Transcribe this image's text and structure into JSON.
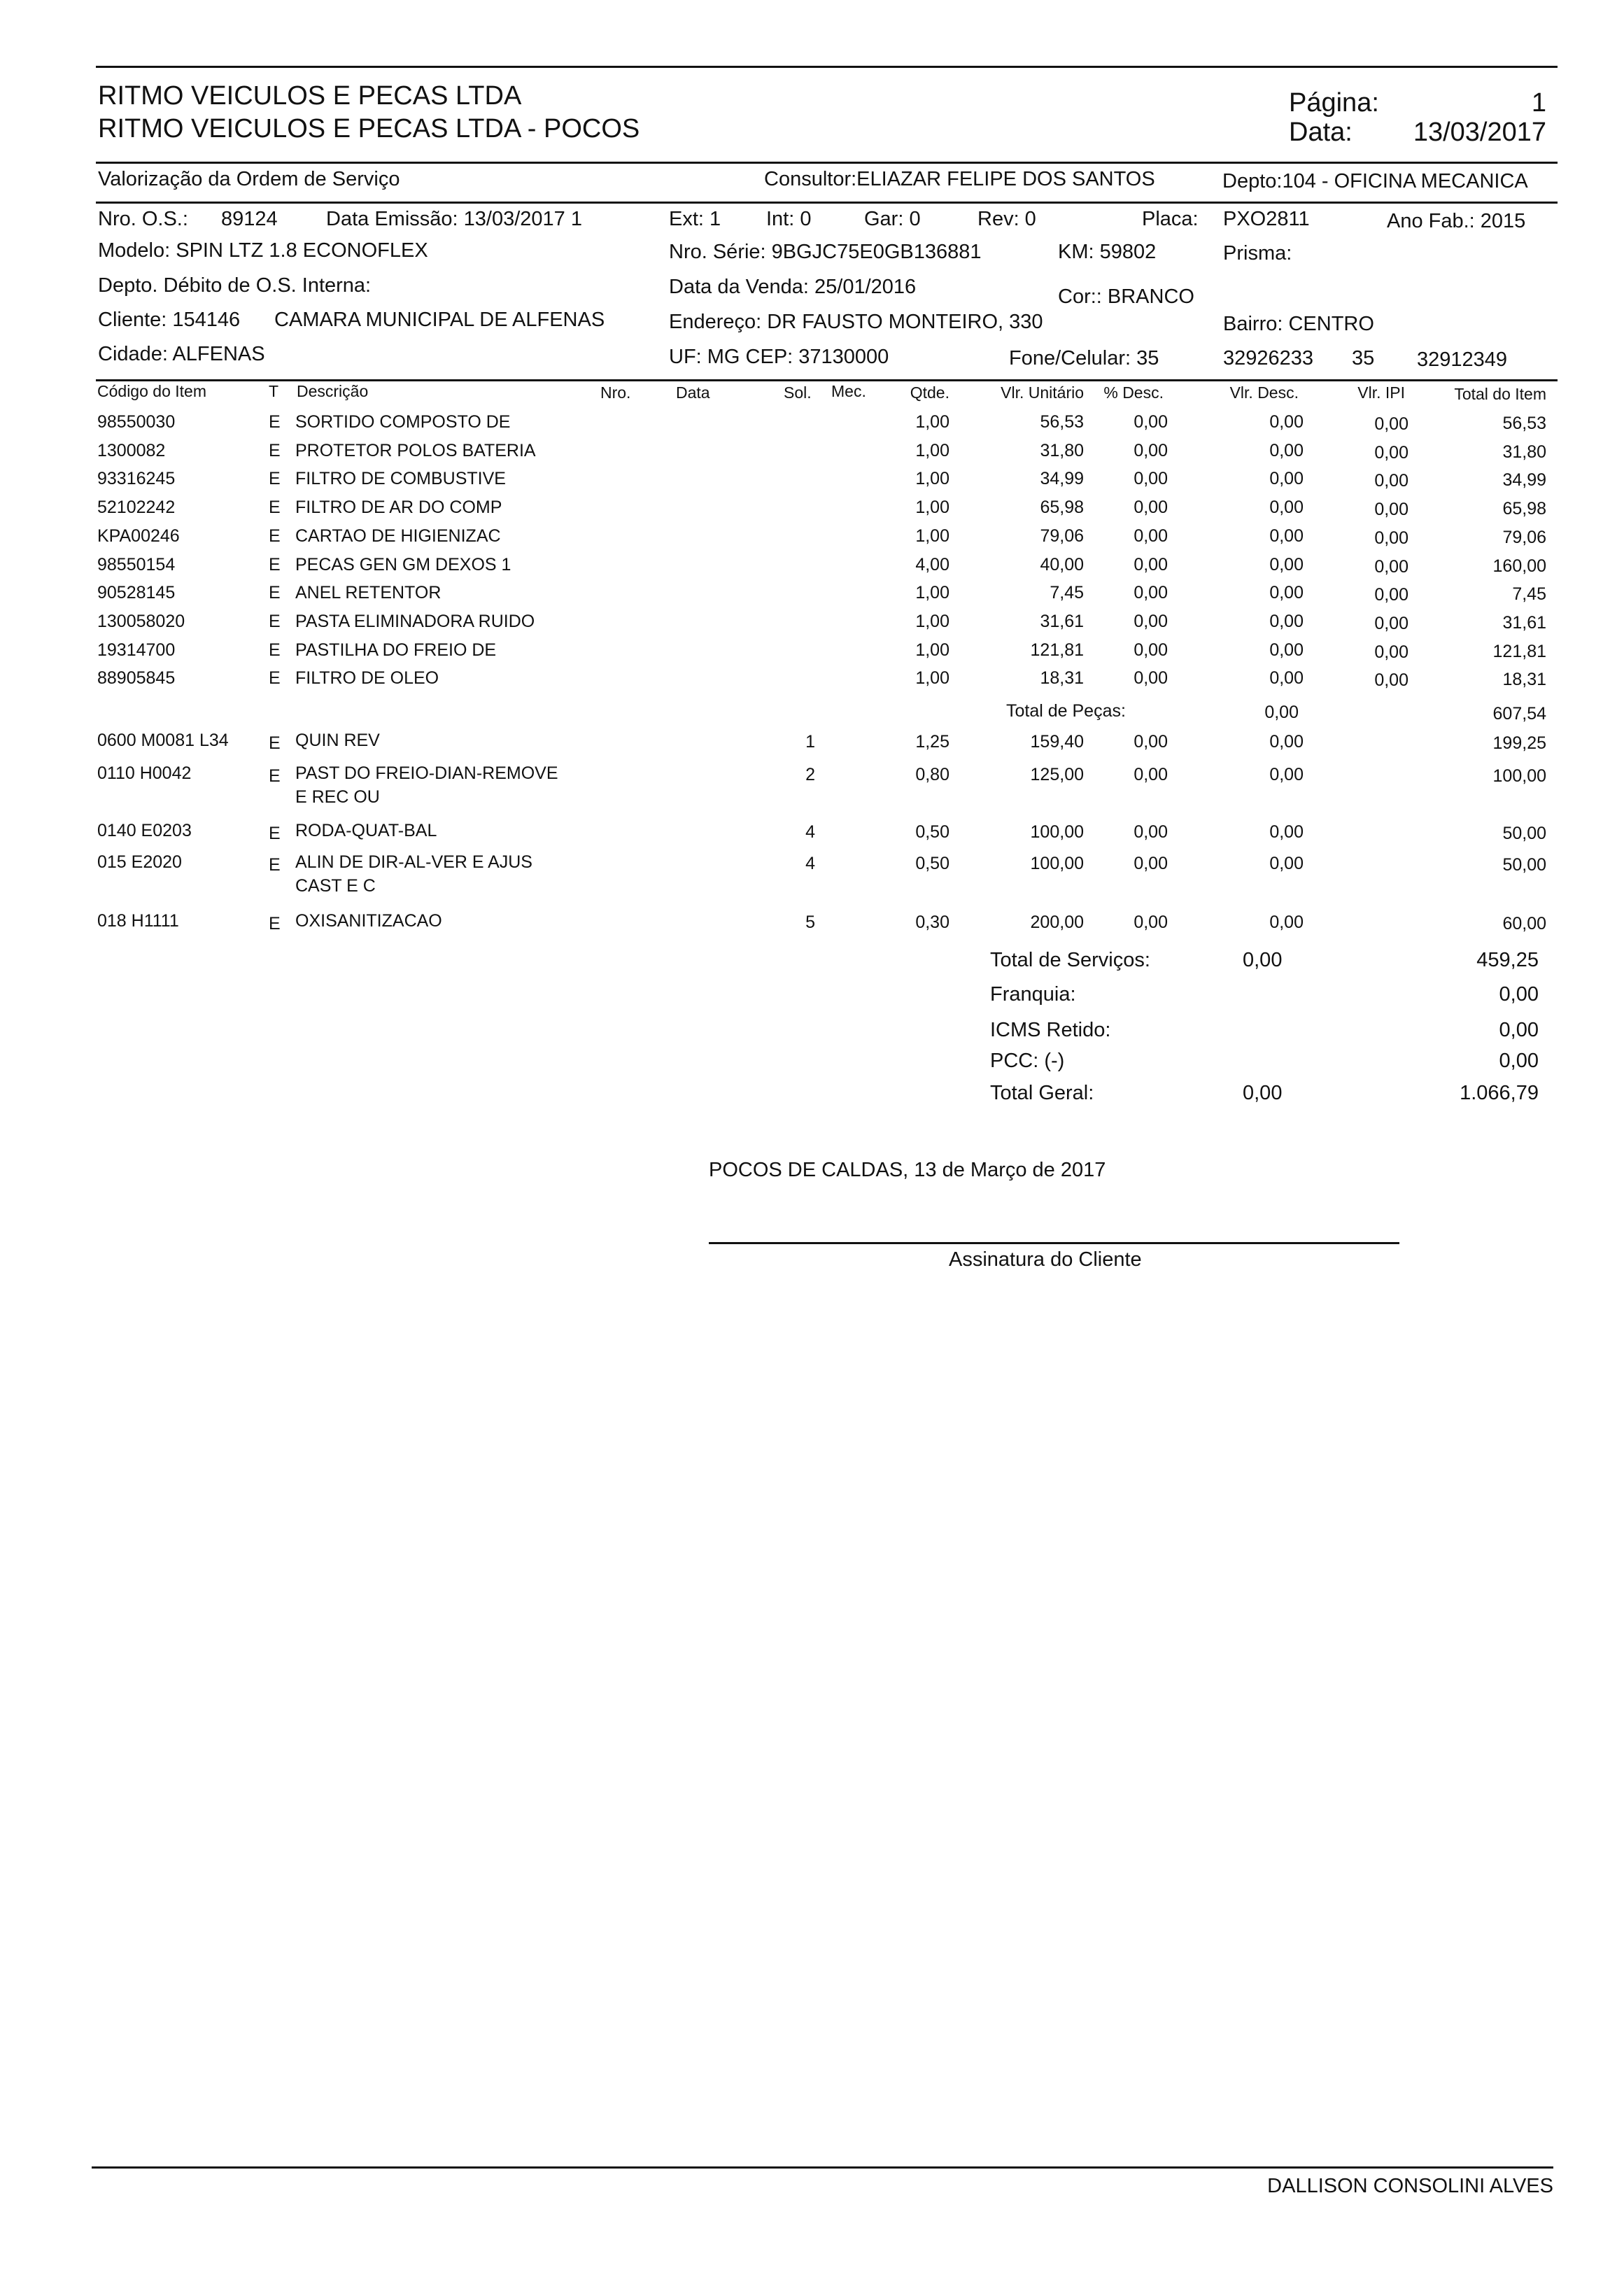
{
  "header": {
    "company": "RITMO VEICULOS E PECAS LTDA",
    "branch": "RITMO VEICULOS E PECAS LTDA - POCOS",
    "page_label": "Página:",
    "page_value": "1",
    "date_label": "Data:",
    "date_value": "13/03/2017"
  },
  "section": {
    "title": "Valorização da Ordem de Serviço",
    "consultor": "Consultor:ELIAZAR FELIPE DOS SANTOS",
    "depto": "Depto:104 - OFICINA MECANICA"
  },
  "order": {
    "os_label": "Nro. O.S.:",
    "os_value": "89124",
    "emissao": "Data Emissão: 13/03/2017 1",
    "ext": "Ext: 1",
    "int": "Int: 0",
    "gar": "Gar: 0",
    "rev": "Rev: 0",
    "placa_label": "Placa:",
    "placa_value": "PXO2811",
    "ano_fab": "Ano Fab.: 2015",
    "modelo": "Modelo: SPIN LTZ 1.8 ECONOFLEX",
    "serie": "Nro. Série: 9BGJC75E0GB136881",
    "km": "KM: 59802",
    "prisma": "Prisma:",
    "depto_debito": "Depto. Débito de O.S. Interna:",
    "data_venda": "Data da Venda: 25/01/2016",
    "cor": "Cor:: BRANCO",
    "cliente_label": "Cliente: 154146",
    "cliente_nome": "CAMARA MUNICIPAL DE ALFENAS",
    "endereco": "Endereço: DR FAUSTO MONTEIRO, 330",
    "bairro": "Bairro: CENTRO",
    "cidade": "Cidade: ALFENAS",
    "uf_cep": "UF: MG CEP: 37130000",
    "fone_label": "Fone/Celular: 35",
    "fone1": "32926233",
    "fone2_ddd": "35",
    "fone2": "32912349"
  },
  "columns": {
    "codigo": "Código do Item",
    "t": "T",
    "descricao": "Descrição",
    "nro": "Nro.",
    "data": "Data",
    "sol": "Sol.",
    "mec": "Mec.",
    "qtde": "Qtde.",
    "vlr_unit": "Vlr. Unitário",
    "pct_desc": "% Desc.",
    "vlr_desc": "Vlr. Desc.",
    "vlr_ipi": "Vlr. IPI",
    "total": "Total do Item"
  },
  "parts": [
    {
      "code": "98550030",
      "t": "E",
      "desc": "SORTIDO COMPOSTO DE",
      "qtde": "1,00",
      "unit": "56,53",
      "pct": "0,00",
      "desc_v": "0,00",
      "ipi": "0,00",
      "total": "56,53"
    },
    {
      "code": "1300082",
      "t": "E",
      "desc": "PROTETOR POLOS BATERIA",
      "qtde": "1,00",
      "unit": "31,80",
      "pct": "0,00",
      "desc_v": "0,00",
      "ipi": "0,00",
      "total": "31,80"
    },
    {
      "code": "93316245",
      "t": "E",
      "desc": "FILTRO DE COMBUSTIVE",
      "qtde": "1,00",
      "unit": "34,99",
      "pct": "0,00",
      "desc_v": "0,00",
      "ipi": "0,00",
      "total": "34,99"
    },
    {
      "code": "52102242",
      "t": "E",
      "desc": "FILTRO DE AR DO COMP",
      "qtde": "1,00",
      "unit": "65,98",
      "pct": "0,00",
      "desc_v": "0,00",
      "ipi": "0,00",
      "total": "65,98"
    },
    {
      "code": "KPA00246",
      "t": "E",
      "desc": "CARTAO DE HIGIENIZAC",
      "qtde": "1,00",
      "unit": "79,06",
      "pct": "0,00",
      "desc_v": "0,00",
      "ipi": "0,00",
      "total": "79,06"
    },
    {
      "code": "98550154",
      "t": "E",
      "desc": "PECAS GEN GM DEXOS 1",
      "qtde": "4,00",
      "unit": "40,00",
      "pct": "0,00",
      "desc_v": "0,00",
      "ipi": "0,00",
      "total": "160,00"
    },
    {
      "code": "90528145",
      "t": "E",
      "desc": "ANEL RETENTOR",
      "qtde": "1,00",
      "unit": "7,45",
      "pct": "0,00",
      "desc_v": "0,00",
      "ipi": "0,00",
      "total": "7,45"
    },
    {
      "code": "130058020",
      "t": "E",
      "desc": "PASTA ELIMINADORA RUIDO",
      "qtde": "1,00",
      "unit": "31,61",
      "pct": "0,00",
      "desc_v": "0,00",
      "ipi": "0,00",
      "total": "31,61"
    },
    {
      "code": "19314700",
      "t": "E",
      "desc": "PASTILHA DO FREIO DE",
      "qtde": "1,00",
      "unit": "121,81",
      "pct": "0,00",
      "desc_v": "0,00",
      "ipi": "0,00",
      "total": "121,81"
    },
    {
      "code": "88905845",
      "t": "E",
      "desc": "FILTRO DE OLEO",
      "qtde": "1,00",
      "unit": "18,31",
      "pct": "0,00",
      "desc_v": "0,00",
      "ipi": "0,00",
      "total": "18,31"
    }
  ],
  "parts_total": {
    "label": "Total de Peças:",
    "desc": "0,00",
    "total": "607,54"
  },
  "services": [
    {
      "code": "0600 M0081 L34",
      "t": "E",
      "desc": "QUIN REV",
      "desc2": "",
      "sol": "1",
      "qtde": "1,25",
      "unit": "159,40",
      "pct": "0,00",
      "desc_v": "0,00",
      "total": "199,25"
    },
    {
      "code": "0110 H0042",
      "t": "E",
      "desc": "PAST DO FREIO-DIAN-REMOVE",
      "desc2": "E REC OU",
      "sol": "2",
      "qtde": "0,80",
      "unit": "125,00",
      "pct": "0,00",
      "desc_v": "0,00",
      "total": "100,00"
    },
    {
      "code": "0140 E0203",
      "t": "E",
      "desc": "RODA-QUAT-BAL",
      "desc2": "",
      "sol": "4",
      "qtde": "0,50",
      "unit": "100,00",
      "pct": "0,00",
      "desc_v": "0,00",
      "total": "50,00"
    },
    {
      "code": "015 E2020",
      "t": "E",
      "desc": "ALIN DE DIR-AL-VER E AJUS",
      "desc2": "CAST E C",
      "sol": "4",
      "qtde": "0,50",
      "unit": "100,00",
      "pct": "0,00",
      "desc_v": "0,00",
      "total": "50,00"
    },
    {
      "code": "018 H1111",
      "t": "E",
      "desc": "OXISANITIZACAO",
      "desc2": "",
      "sol": "5",
      "qtde": "0,30",
      "unit": "200,00",
      "pct": "0,00",
      "desc_v": "0,00",
      "total": "60,00"
    }
  ],
  "totals": [
    {
      "label": "Total de Serviços:",
      "desc": "0,00",
      "value": "459,25"
    },
    {
      "label": "Franquia:",
      "desc": "",
      "value": "0,00"
    },
    {
      "label": "ICMS Retido:",
      "desc": "",
      "value": "0,00"
    },
    {
      "label": "PCC: (-)",
      "desc": "",
      "value": "0,00"
    },
    {
      "label": "Total  Geral:",
      "desc": "0,00",
      "value": "1.066,79"
    }
  ],
  "footer": {
    "place_date": "POCOS DE CALDAS, 13 de Março de 2017",
    "signature_label": "Assinatura do Cliente",
    "operator": "DALLISON CONSOLINI ALVES"
  }
}
